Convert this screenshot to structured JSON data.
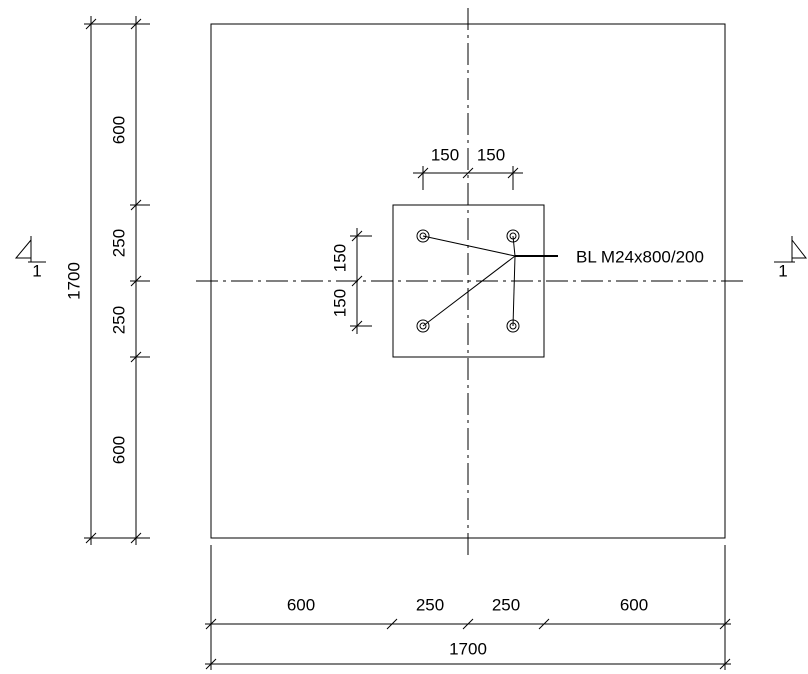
{
  "dimensions": {
    "left_chain": [
      "600",
      "250",
      "250",
      "600"
    ],
    "left_total": "1700",
    "bottom_chain": [
      "600",
      "250",
      "250",
      "600"
    ],
    "bottom_total": "1700",
    "bolt_spacing_horizontal": [
      "150",
      "150"
    ],
    "bolt_spacing_vertical": [
      "150",
      "150"
    ]
  },
  "bolt_label": "BL M24x800/200",
  "section_marks": [
    "1",
    "1"
  ]
}
